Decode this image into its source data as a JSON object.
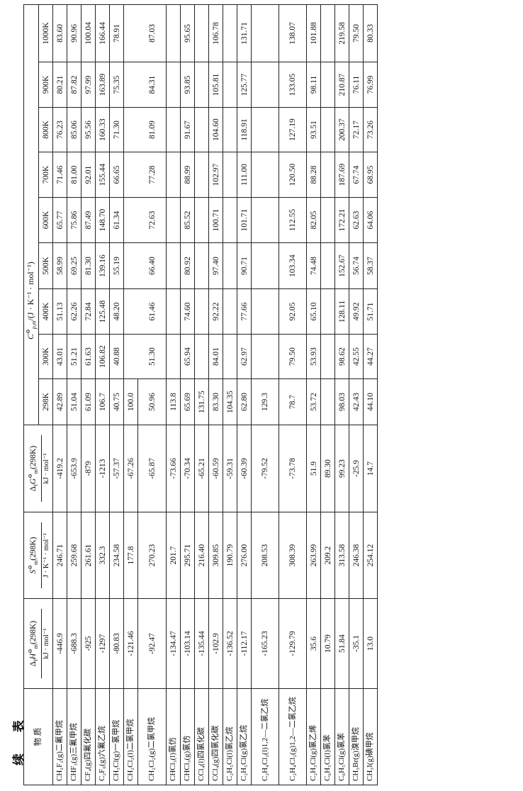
{
  "continued_label": "续 表",
  "headers": {
    "substance": "物 质",
    "dfh": {
      "sym": "Δ",
      "sub1": "f",
      "var": "H",
      "sup": "⊖",
      "sub2": "m",
      "tail": "(298K)",
      "unit": "kJ · mol⁻¹"
    },
    "s": {
      "sym": "",
      "sub1": "",
      "var": "S",
      "sup": "⊖",
      "sub2": "m",
      "tail": "(298K)",
      "unit": "J · K⁻¹ · mol⁻¹"
    },
    "dfg": {
      "sym": "Δ",
      "sub1": "f",
      "var": "G",
      "sup": "⊖",
      "sub2": "m",
      "tail": "(298K)",
      "unit": "kJ · mol⁻¹"
    },
    "cp": {
      "var": "C",
      "sup": "⊖",
      "sub": "p,m",
      "unit": "/(J · K⁻¹ · mol⁻¹)"
    },
    "temps": [
      "298K",
      "300K",
      "400K",
      "500K",
      "600K",
      "700K",
      "800K",
      "900K",
      "1000K"
    ]
  },
  "rows": [
    {
      "name": "CH₂F₂(g)二氟甲烷",
      "dfh": "-446.9",
      "s": "246.71",
      "dfg": "-419.2",
      "cp": [
        "42.89",
        "43.01",
        "51.13",
        "58.99",
        "65.77",
        "71.46",
        "76.23",
        "80.21",
        "83.60"
      ]
    },
    {
      "name": "CHF₃(g)三氟甲烷",
      "dfh": "-688.3",
      "s": "259.68",
      "dfg": "-653.9",
      "cp": [
        "51.04",
        "51.21",
        "62.26",
        "69.25",
        "75.86",
        "81.00",
        "85.06",
        "87.82",
        "90.96"
      ]
    },
    {
      "name": "CF₄(g)四氟化碳",
      "dfh": "-925",
      "s": "261.61",
      "dfg": "-879",
      "cp": [
        "61.09",
        "61.63",
        "72.84",
        "81.30",
        "87.49",
        "92.01",
        "95.56",
        "97.99",
        "100.04"
      ]
    },
    {
      "name": "C₂F₆(g)六氟乙烷",
      "dfh": "-1297",
      "s": "332.3",
      "dfg": "-1213",
      "cp": [
        "106.7",
        "106.82",
        "125.48",
        "139.16",
        "148.70",
        "155.44",
        "160.33",
        "163.89",
        "166.44"
      ]
    },
    {
      "name": "CH₃Cl(g)一氯甲烷",
      "dfh": "-80.83",
      "s": "234.58",
      "dfg": "-57.37",
      "cp": [
        "40.75",
        "40.88",
        "48.20",
        "55.19",
        "61.34",
        "66.65",
        "71.30",
        "75.35",
        "78.91"
      ]
    },
    {
      "name": "CH₂Cl₂(l)二氯甲烷",
      "dfh": "-121.46",
      "s": "177.8",
      "dfg": "-67.26",
      "cp": [
        "100.0",
        "",
        "",
        "",
        "",
        "",
        "",
        "",
        ""
      ]
    },
    {
      "name": "CH₂Cl₂(g)二氯甲烷",
      "dfh": "-92.47",
      "s": "270.23",
      "dfg": "-65.87",
      "cp": [
        "50.96",
        "51.30",
        "61.46",
        "66.40",
        "72.63",
        "77.28",
        "81.09",
        "84.31",
        "87.03"
      ]
    },
    {
      "name": "CHCl₃(l)氯仿",
      "dfh": "-134.47",
      "s": "201.7",
      "dfg": "-73.66",
      "cp": [
        "113.8",
        "",
        "",
        "",
        "",
        "",
        "",
        "",
        ""
      ]
    },
    {
      "name": "CHCl₃(g)氯仿",
      "dfh": "-103.14",
      "s": "295.71",
      "dfg": "-70.34",
      "cp": [
        "65.69",
        "65.94",
        "74.60",
        "80.92",
        "85.52",
        "88.99",
        "91.67",
        "93.85",
        "95.65"
      ]
    },
    {
      "name": "CCl₄(l)四氯化碳",
      "dfh": "-135.44",
      "s": "216.40",
      "dfg": "-65.21",
      "cp": [
        "131.75",
        "",
        "",
        "",
        "",
        "",
        "",
        "",
        ""
      ]
    },
    {
      "name": "CCl₄(g)四氯化碳",
      "dfh": "-102.9",
      "s": "309.85",
      "dfg": "-60.59",
      "cp": [
        "83.30",
        "84.01",
        "92.22",
        "97.40",
        "100.71",
        "102.97",
        "104.60",
        "105.81",
        "106.78"
      ]
    },
    {
      "name": "C₂H₅Cl(l)氯乙烷",
      "dfh": "-136.52",
      "s": "190.79",
      "dfg": "-59.31",
      "cp": [
        "104.35",
        "",
        "",
        "",
        "",
        "",
        "",
        "",
        ""
      ]
    },
    {
      "name": "C₂H₅Cl(g)氯乙烷",
      "dfh": "-112.17",
      "s": "276.00",
      "dfg": "-60.39",
      "cp": [
        "62.80",
        "62.97",
        "77.66",
        "90.71",
        "101.71",
        "111.00",
        "118.91",
        "125.77",
        "131.71"
      ]
    },
    {
      "name": "C₂H₄Cl₂(l)1,2—二氯乙烷",
      "dfh": "-165.23",
      "s": "208.53",
      "dfg": "-79.52",
      "cp": [
        "129.3",
        "",
        "",
        "",
        "",
        "",
        "",
        "",
        ""
      ]
    },
    {
      "name": "C₂H₄Cl₂(g)1,2—二氯乙烷",
      "dfh": "-129.79",
      "s": "308.39",
      "dfg": "-73.78",
      "cp": [
        "78.7",
        "79.50",
        "92.05",
        "103.34",
        "112.55",
        "120.50",
        "127.19",
        "133.05",
        "138.07"
      ]
    },
    {
      "name": "C₂H₃Cl(g)氯乙烯",
      "dfh": "35.6",
      "s": "263.99",
      "dfg": "51.9",
      "cp": [
        "53.72",
        "53.93",
        "65.10",
        "74.48",
        "82.05",
        "88.28",
        "93.51",
        "98.11",
        "101.88"
      ]
    },
    {
      "name": "C₆H₅Cl(l)氯苯",
      "dfh": "10.79",
      "s": "209.2",
      "dfg": "89.30",
      "cp": [
        "",
        "",
        "",
        "",
        "",
        "",
        "",
        "",
        ""
      ]
    },
    {
      "name": "C₆H₅Cl(g)氯苯",
      "dfh": "51.84",
      "s": "313.58",
      "dfg": "99.23",
      "cp": [
        "98.03",
        "98.62",
        "128.11",
        "152.67",
        "172.21",
        "187.69",
        "200.37",
        "210.87",
        "219.58"
      ]
    },
    {
      "name": "CH₃Br(g)溴甲烷",
      "dfh": "-35.1",
      "s": "246.38",
      "dfg": "-25.9",
      "cp": [
        "42.43",
        "42.55",
        "49.92",
        "56.74",
        "62.63",
        "67.74",
        "72.17",
        "76.11",
        "79.50"
      ]
    },
    {
      "name": "CH₃I(g)碘甲烷",
      "dfh": "13.0",
      "s": "254.12",
      "dfg": "14.7",
      "cp": [
        "44.10",
        "44.27",
        "51.71",
        "58.37",
        "64.06",
        "68.95",
        "73.26",
        "76.99",
        "80.33"
      ]
    }
  ]
}
